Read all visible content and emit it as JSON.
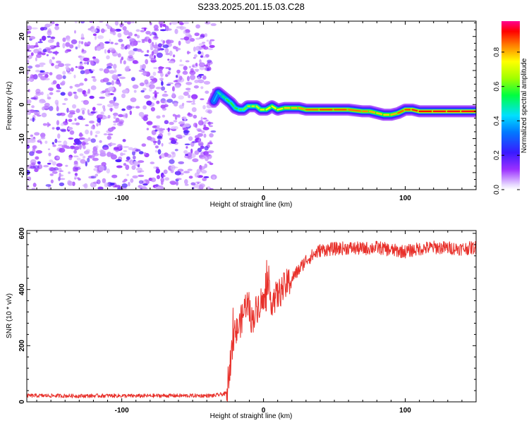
{
  "title": "S233.2025.201.15.03.C28",
  "colors": {
    "series": "#e8302a",
    "frame": "#000000"
  },
  "chart_data": [
    {
      "type": "heatmap",
      "xlabel": "Height of straight line (km)",
      "ylabel": "Frequency (Hz)",
      "xlim": [
        -167,
        150
      ],
      "ylim": [
        -25,
        24.5
      ],
      "xticks": [
        -100,
        0,
        100
      ],
      "yticks": [
        -20,
        -10,
        0,
        10,
        20
      ],
      "colorbar": {
        "label": "Normalized spectral amplitude",
        "range": [
          0,
          0.98
        ],
        "ticks": [
          "0.0",
          "0.2",
          "0.4",
          "0.6",
          "0.8"
        ],
        "colormap": "rainbow (purple → blue → cyan → green → yellow → red → pink)"
      },
      "noise_region": {
        "x_range": [
          -167,
          -35
        ],
        "freq_range": [
          -25,
          24.5
        ],
        "amplitude": "low (random speckle)"
      },
      "ridge": {
        "x": [
          -35,
          -32,
          -29,
          -26,
          -23,
          -20,
          -17,
          -14,
          -11,
          -8,
          -5,
          -2,
          2,
          6,
          10,
          15,
          20,
          25,
          30,
          40,
          50,
          60,
          70,
          75,
          80,
          85,
          90,
          95,
          100,
          105,
          110,
          120,
          130,
          140,
          150
        ],
        "frequency": [
          1,
          3.5,
          2.5,
          1.5,
          0.5,
          -1,
          -1.5,
          -1.5,
          -0.5,
          -0.5,
          -0.5,
          -1.5,
          -1.5,
          -0.5,
          -1.5,
          -1.0,
          -1.0,
          -1.0,
          -1.5,
          -1.5,
          -1.5,
          -1.5,
          -2.0,
          -2.0,
          -2.5,
          -3,
          -3,
          -2.5,
          -1.5,
          -1.5,
          -2,
          -2,
          -2,
          -2,
          -2
        ],
        "amplitude": [
          0.3,
          0.5,
          0.5,
          0.55,
          0.6,
          0.55,
          0.6,
          0.6,
          0.65,
          0.7,
          0.7,
          0.7,
          0.75,
          0.75,
          0.75,
          0.8,
          0.8,
          0.82,
          0.85,
          0.9,
          0.9,
          0.88,
          0.85,
          0.85,
          0.8,
          0.8,
          0.78,
          0.85,
          0.9,
          0.9,
          0.92,
          0.95,
          0.95,
          0.95,
          0.95
        ]
      }
    },
    {
      "type": "line",
      "xlabel": "Height of straight line (km)",
      "ylabel": "SNR (10 * v/v)",
      "xlim": [
        -167,
        150
      ],
      "ylim": [
        0,
        610
      ],
      "xticks": [
        -100,
        0,
        100
      ],
      "yticks": [
        0,
        200,
        400,
        600
      ],
      "series": [
        {
          "x": [
            -167,
            -150,
            -130,
            -110,
            -90,
            -70,
            -50,
            -35,
            -26,
            -24,
            -22,
            -20,
            -18,
            -15,
            -12,
            -10,
            -8,
            -5,
            -2,
            0,
            3,
            6,
            10,
            15,
            20,
            25,
            30,
            40,
            50,
            60,
            70,
            80,
            90,
            100,
            110,
            120,
            130,
            140,
            150
          ],
          "y": [
            22,
            22,
            21,
            22,
            21,
            22,
            22,
            22,
            30,
            120,
            190,
            240,
            260,
            300,
            360,
            320,
            290,
            330,
            360,
            350,
            390,
            360,
            380,
            410,
            440,
            470,
            505,
            540,
            545,
            548,
            545,
            550,
            540,
            535,
            545,
            550,
            548,
            545,
            550
          ]
        }
      ]
    }
  ]
}
